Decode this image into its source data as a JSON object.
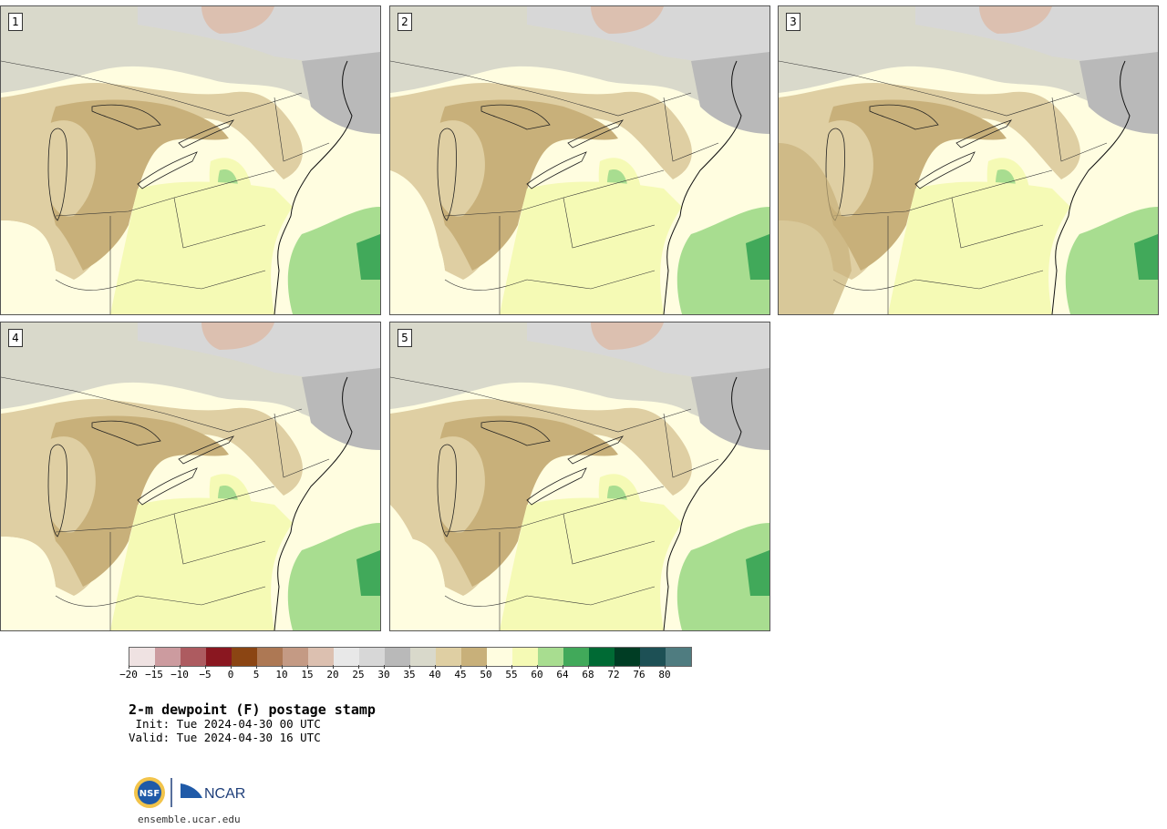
{
  "panels": [
    {
      "id": "1",
      "label": "1"
    },
    {
      "id": "2",
      "label": "2"
    },
    {
      "id": "3",
      "label": "3"
    },
    {
      "id": "4",
      "label": "4"
    },
    {
      "id": "5",
      "label": "5"
    }
  ],
  "colorbar": {
    "colors": [
      "#efe2e2",
      "#cc9b9f",
      "#ad5b60",
      "#8a1720",
      "#8b4513",
      "#ad7854",
      "#c49a84",
      "#dcc0b0",
      "#e8e8e8",
      "#d7d7d7",
      "#b9b9b9",
      "#d9d9cb",
      "#dfcfa3",
      "#c8b07a",
      "#fffde0",
      "#f5fab5",
      "#a8dd90",
      "#41a95a",
      "#006a34",
      "#003d24",
      "#1d5055",
      "#4f7c80"
    ],
    "ticks": [
      "−20",
      "−15",
      "−10",
      "−5",
      "0",
      "5",
      "10",
      "15",
      "20",
      "25",
      "30",
      "35",
      "40",
      "45",
      "50",
      "55",
      "60",
      "64",
      "68",
      "72",
      "76",
      "80"
    ]
  },
  "title": "2-m dewpoint (F) postage stamp",
  "init_line": " Init: Tue 2024-04-30 00 UTC",
  "valid_line": "Valid: Tue 2024-04-30 16 UTC",
  "logo": {
    "nsf": "NSF",
    "ncar": "NCAR"
  },
  "url": "ensemble.ucar.edu"
}
